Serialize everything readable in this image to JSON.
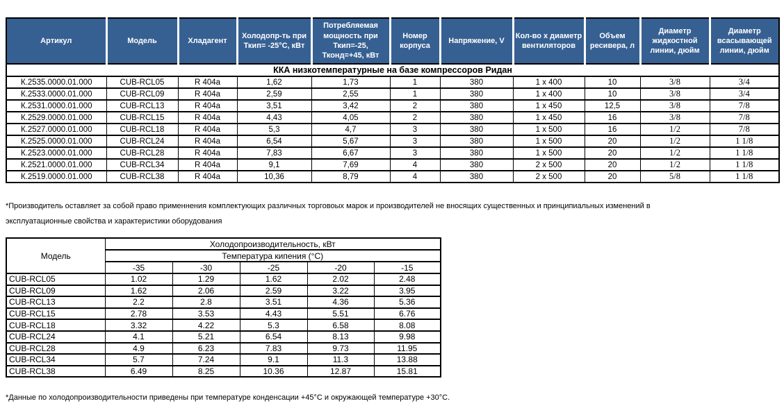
{
  "colors": {
    "header_bg": "#366092",
    "header_text": "#ffffff",
    "border": "#000000",
    "page_bg": "#ffffff"
  },
  "table1": {
    "columns": [
      "Артикул",
      "Модель",
      "Хладагент",
      "Холодопр-ть при Ткип= -25°С, кВт",
      "Потребляемая мощность при Ткип=-25, Тконд=+45, кВт",
      "Номер корпуса",
      "Напряжение, V",
      "Кол-во х диаметр вентиляторов",
      "Объем ресивера, л",
      "Диаметр жидкостной линии, дюйм",
      "Диаметр всасывающей линии, дюйм"
    ],
    "group_row": "ККА низкотемпературные на базе компрессоров Ридан",
    "rows": [
      [
        "К.2535.0000.01.000",
        "CUB-RCL05",
        "R 404a",
        "1,62",
        "1,73",
        "1",
        "380",
        "1 x 400",
        "10",
        "3/8",
        "3/4"
      ],
      [
        "К.2533.0000.01.000",
        "CUB-RCL09",
        "R 404a",
        "2,59",
        "2,55",
        "1",
        "380",
        "1 x 400",
        "10",
        "3/8",
        "3/4"
      ],
      [
        "К.2531.0000.01.000",
        "CUB-RCL13",
        "R 404a",
        "3,51",
        "3,42",
        "2",
        "380",
        "1 x 450",
        "12,5",
        "3/8",
        "7/8"
      ],
      [
        "К.2529.0000.01.000",
        "CUB-RCL15",
        "R 404a",
        "4,43",
        "4,05",
        "2",
        "380",
        "1 x 450",
        "16",
        "3/8",
        "7/8"
      ],
      [
        "К.2527.0000.01.000",
        "CUB-RCL18",
        "R 404a",
        "5,3",
        "4,7",
        "3",
        "380",
        "1 x 500",
        "16",
        "1/2",
        "7/8"
      ],
      [
        "К.2525.0000.01.000",
        "CUB-RCL24",
        "R 404a",
        "6,54",
        "5,67",
        "3",
        "380",
        "1 x 500",
        "20",
        "1/2",
        "1 1/8"
      ],
      [
        "К.2523.0000.01.000",
        "CUB-RCL28",
        "R 404a",
        "7,83",
        "6,67",
        "3",
        "380",
        "1 x 500",
        "20",
        "1/2",
        "1 1/8"
      ],
      [
        "К.2521.0000.01.000",
        "CUB-RCL34",
        "R 404a",
        "9,1",
        "7,69",
        "4",
        "380",
        "2 x 500",
        "20",
        "1/2",
        "1 1/8"
      ],
      [
        "К.2519.0000.01.000",
        "CUB-RCL38",
        "R 404a",
        "10,36",
        "8,79",
        "4",
        "380",
        "2 x 500",
        "20",
        "5/8",
        "1 1/8"
      ]
    ],
    "serif_column_indexes": [
      9,
      10
    ]
  },
  "notes": {
    "note1_line1": "*Производитель оставляет за собой право применнения комплектующих различных торговоых марок и производителей не вносящих существенных и принципиальных изменений в",
    "note1_line2": "эксплуатационные свойства и характеристики оборудования",
    "note2": "*Данные по холодопроизводительности приведены при температуре конденсации +45°С и окружающей температуре +30°С."
  },
  "table2": {
    "model_header": "Модель",
    "span_header": "Холодопроизводительность, кВт",
    "sub_header": "Температура кипения (°С)",
    "temps": [
      "-35",
      "-30",
      "-25",
      "-20",
      "-15"
    ],
    "rows": [
      {
        "model": "CUB-RCL05",
        "values": [
          "1.02",
          "1.29",
          "1.62",
          "2.02",
          "2.48"
        ]
      },
      {
        "model": "CUB-RCL09",
        "values": [
          "1.62",
          "2.06",
          "2.59",
          "3.22",
          "3.95"
        ]
      },
      {
        "model": "CUB-RCL13",
        "values": [
          "2.2",
          "2.8",
          "3.51",
          "4.36",
          "5.36"
        ]
      },
      {
        "model": "CUB-RCL15",
        "values": [
          "2.78",
          "3.53",
          "4.43",
          "5.51",
          "6.76"
        ]
      },
      {
        "model": "CUB-RCL18",
        "values": [
          "3.32",
          "4.22",
          "5.3",
          "6.58",
          "8.08"
        ]
      },
      {
        "model": "CUB-RCL24",
        "values": [
          "4.1",
          "5.21",
          "6.54",
          "8.13",
          "9.98"
        ]
      },
      {
        "model": "CUB-RCL28",
        "values": [
          "4.9",
          "6.23",
          "7.83",
          "9.73",
          "11.95"
        ]
      },
      {
        "model": "CUB-RCL34",
        "values": [
          "5.7",
          "7.24",
          "9.1",
          "11.3",
          "13.88"
        ]
      },
      {
        "model": "CUB-RCL38",
        "values": [
          "6.49",
          "8.25",
          "10.36",
          "12.87",
          "15.81"
        ]
      }
    ]
  }
}
